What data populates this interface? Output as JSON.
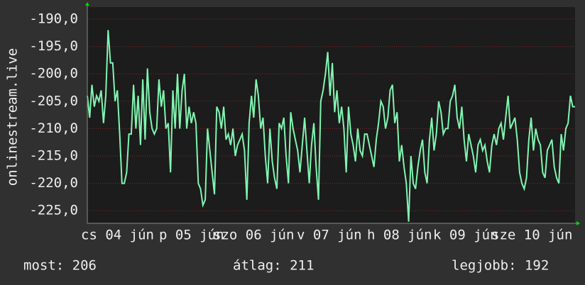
{
  "chart_data": {
    "type": "line",
    "y_label": "onlinestream.live",
    "x_labels": [
      "cs 04 jún",
      "p 05 jún",
      "szo 06 jún",
      "v 07 jún",
      "h 08 jún",
      "k 09 jún",
      "sze 10 jún"
    ],
    "ylim": [
      -227.3,
      -187.8
    ],
    "yticks": [
      {
        "value": -190,
        "label": "-190,0"
      },
      {
        "value": -195,
        "label": "-195,0"
      },
      {
        "value": -200,
        "label": "-200,0"
      },
      {
        "value": -205,
        "label": "-205,0"
      },
      {
        "value": -210,
        "label": "-210,0"
      },
      {
        "value": -215,
        "label": "-215,0"
      },
      {
        "value": -220,
        "label": "-220,0"
      },
      {
        "value": -225,
        "label": "-225,0"
      }
    ],
    "grid": true,
    "color": "#80f5b0",
    "values": [
      -204,
      -208,
      -202,
      -206,
      -204,
      -205,
      -203,
      -209,
      -204,
      -192,
      -198,
      -198,
      -205,
      -203,
      -211,
      -220,
      -220,
      -218,
      -211,
      -211,
      -202,
      -210,
      -204,
      -213,
      -201,
      -212,
      -199,
      -207,
      -210,
      -211,
      -210,
      -201,
      -206,
      -203,
      -210,
      -209,
      -218,
      -203,
      -210,
      -200,
      -210,
      -203,
      -200,
      -210,
      -206,
      -209,
      -207,
      -209,
      -220,
      -221,
      -224,
      -223,
      -210,
      -214,
      -218,
      -222,
      -206,
      -207,
      -210,
      -206,
      -212,
      -211,
      -213,
      -210,
      -215,
      -213,
      -212,
      -211,
      -214,
      -223,
      -209,
      -204,
      -208,
      -201,
      -204,
      -210,
      -208,
      -215,
      -220,
      -210,
      -216,
      -219,
      -221,
      -209,
      -210,
      -208,
      -215,
      -220,
      -207,
      -210,
      -212,
      -214,
      -218,
      -213,
      -208,
      -214,
      -220,
      -213,
      -209,
      -217,
      -223,
      -205,
      -203,
      -200,
      -196,
      -204,
      -198,
      -207,
      -203,
      -209,
      -206,
      -210,
      -218,
      -206,
      -211,
      -213,
      -216,
      -210,
      -214,
      -215,
      -211,
      -211,
      -213,
      -215,
      -217,
      -212,
      -209,
      -205,
      -206,
      -210,
      -208,
      -203,
      -202,
      -209,
      -207,
      -216,
      -213,
      -217,
      -220,
      -227,
      -215,
      -220,
      -221,
      -217,
      -214,
      -212,
      -218,
      -220,
      -212,
      -208,
      -214,
      -211,
      -205,
      -207,
      -211,
      -210,
      -210,
      -205,
      -204,
      -202,
      -208,
      -210,
      -206,
      -212,
      -216,
      -211,
      -213,
      -215,
      -218,
      -213,
      -212,
      -214,
      -213,
      -216,
      -218,
      -213,
      -211,
      -213,
      -210,
      -209,
      -212,
      -208,
      -204,
      -210,
      -209,
      -208,
      -212,
      -218,
      -220,
      -221,
      -219,
      -212,
      -208,
      -214,
      -210,
      -212,
      -213,
      -218,
      -219,
      -214,
      -213,
      -212,
      -217,
      -219,
      -220,
      -211,
      -214,
      -210,
      -209,
      -204,
      -206,
      -206
    ]
  },
  "footer": [
    "most: 206",
    "átlag: 211",
    "legjobb: 192"
  ]
}
